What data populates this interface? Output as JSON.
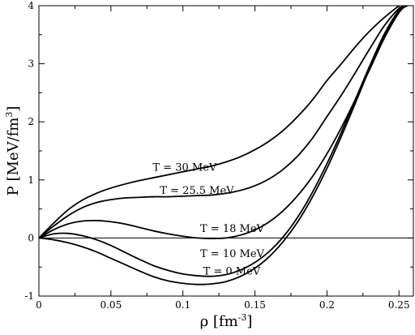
{
  "chart_data": {
    "type": "line",
    "xlabel": "ρ [fm",
    "xlabel_unit_sup": "-3",
    "xlabel_unit_close": "]",
    "ylabel": "P [MeV/fm",
    "ylabel_unit_sup": "3",
    "ylabel_unit_close": "]",
    "xlim": [
      0,
      0.26
    ],
    "ylim": [
      -1,
      4
    ],
    "x_ticks": [
      0,
      0.05,
      0.1,
      0.15,
      0.2,
      0.25
    ],
    "x_tick_labels": [
      "0",
      "0.05",
      "0.1",
      "0.15",
      "0.2",
      "0.25"
    ],
    "y_ticks": [
      -1,
      0,
      1,
      2,
      3,
      4
    ],
    "y_tick_labels": [
      "-1",
      "0",
      "1",
      "2",
      "3",
      "4"
    ],
    "zero_line": true,
    "grid": false,
    "series": [
      {
        "name": "T = 30 MeV",
        "x": [
          0,
          0.01,
          0.02,
          0.03,
          0.04,
          0.05,
          0.06,
          0.07,
          0.08,
          0.09,
          0.1,
          0.11,
          0.12,
          0.13,
          0.14,
          0.15,
          0.16,
          0.17,
          0.18,
          0.19,
          0.2,
          0.21,
          0.22,
          0.23,
          0.24,
          0.25
        ],
        "y": [
          0,
          0.25,
          0.48,
          0.65,
          0.77,
          0.86,
          0.93,
          0.99,
          1.04,
          1.09,
          1.14,
          1.19,
          1.24,
          1.31,
          1.4,
          1.52,
          1.67,
          1.86,
          2.1,
          2.38,
          2.71,
          3.0,
          3.3,
          3.57,
          3.8,
          4.0
        ]
      },
      {
        "name": "T = 25.5 MeV",
        "x": [
          0,
          0.01,
          0.02,
          0.03,
          0.04,
          0.05,
          0.06,
          0.07,
          0.08,
          0.09,
          0.1,
          0.11,
          0.12,
          0.13,
          0.14,
          0.15,
          0.16,
          0.17,
          0.18,
          0.19,
          0.2,
          0.21,
          0.22,
          0.23,
          0.24,
          0.25,
          0.255
        ],
        "y": [
          0,
          0.2,
          0.38,
          0.52,
          0.61,
          0.66,
          0.69,
          0.7,
          0.71,
          0.71,
          0.72,
          0.73,
          0.74,
          0.77,
          0.82,
          0.9,
          1.02,
          1.19,
          1.42,
          1.72,
          2.09,
          2.46,
          2.86,
          3.27,
          3.66,
          3.95,
          4.0
        ]
      },
      {
        "name": "T = 18 MeV",
        "x": [
          0,
          0.01,
          0.02,
          0.03,
          0.04,
          0.05,
          0.06,
          0.07,
          0.08,
          0.09,
          0.1,
          0.11,
          0.12,
          0.13,
          0.14,
          0.15,
          0.16,
          0.17,
          0.18,
          0.19,
          0.2,
          0.21,
          0.22,
          0.23,
          0.24,
          0.25,
          0.255
        ],
        "y": [
          0,
          0.14,
          0.24,
          0.29,
          0.3,
          0.28,
          0.24,
          0.18,
          0.12,
          0.07,
          0.03,
          0.0,
          -0.01,
          0.0,
          0.05,
          0.14,
          0.28,
          0.48,
          0.74,
          1.06,
          1.45,
          1.9,
          2.4,
          2.92,
          3.45,
          3.88,
          4.0
        ]
      },
      {
        "name": "T = 10 MeV",
        "x": [
          0,
          0.01,
          0.02,
          0.03,
          0.04,
          0.05,
          0.06,
          0.07,
          0.08,
          0.09,
          0.1,
          0.11,
          0.12,
          0.13,
          0.14,
          0.15,
          0.16,
          0.17,
          0.18,
          0.19,
          0.2,
          0.21,
          0.22,
          0.23,
          0.24,
          0.25,
          0.255
        ],
        "y": [
          0,
          0.07,
          0.08,
          0.04,
          -0.03,
          -0.13,
          -0.25,
          -0.37,
          -0.48,
          -0.56,
          -0.62,
          -0.65,
          -0.66,
          -0.63,
          -0.55,
          -0.42,
          -0.23,
          0.03,
          0.37,
          0.79,
          1.28,
          1.82,
          2.4,
          2.98,
          3.52,
          3.92,
          4.0
        ]
      },
      {
        "name": "T = 0 MeV",
        "x": [
          0,
          0.01,
          0.02,
          0.03,
          0.04,
          0.05,
          0.06,
          0.07,
          0.08,
          0.09,
          0.1,
          0.11,
          0.12,
          0.13,
          0.14,
          0.15,
          0.16,
          0.17,
          0.18,
          0.19,
          0.2,
          0.21,
          0.22,
          0.23,
          0.24,
          0.25,
          0.256
        ],
        "y": [
          0,
          -0.03,
          -0.08,
          -0.15,
          -0.24,
          -0.35,
          -0.46,
          -0.57,
          -0.67,
          -0.74,
          -0.78,
          -0.8,
          -0.79,
          -0.75,
          -0.66,
          -0.52,
          -0.32,
          -0.05,
          0.29,
          0.71,
          1.2,
          1.75,
          2.34,
          2.94,
          3.5,
          3.9,
          4.0
        ]
      }
    ],
    "annotations": [
      {
        "text": "T = 30 MeV",
        "x": 0.079,
        "y": 1.16
      },
      {
        "text": "T = 25.5 MeV",
        "x": 0.084,
        "y": 0.76
      },
      {
        "text": "T = 18 MeV",
        "x": 0.112,
        "y": 0.1
      },
      {
        "text": "T = 10 MeV",
        "x": 0.112,
        "y": -0.33
      },
      {
        "text": "T = 0 MeV",
        "x": 0.114,
        "y": -0.63
      }
    ]
  }
}
